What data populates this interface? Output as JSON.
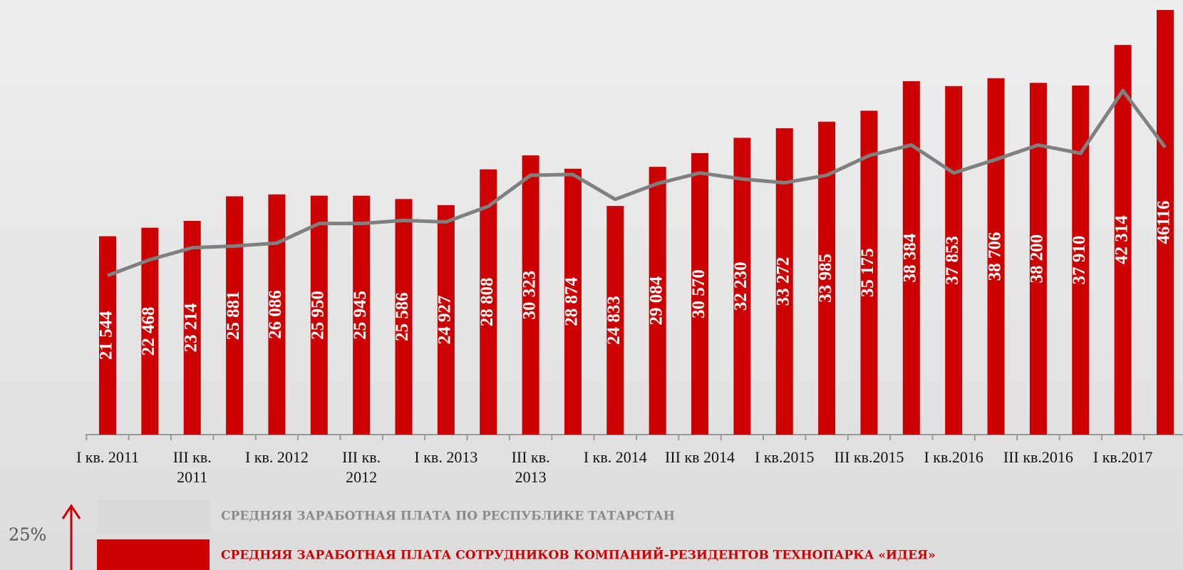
{
  "chart_data": {
    "type": "bar",
    "categories": [
      "I кв. 2011",
      null,
      "III кв.\n2011",
      null,
      "I кв. 2012",
      null,
      "III кв.\n2012",
      null,
      "I кв. 2013",
      null,
      "III кв.\n2013",
      null,
      "I кв. 2014",
      null,
      "III кв 2014",
      null,
      "I кв.2015",
      null,
      "III кв.2015",
      null,
      "I кв.2016",
      null,
      "III кв.2016",
      null,
      "I кв.2017",
      null
    ],
    "series": [
      {
        "name": "СРЕДНЯЯ ЗАРАБОТНАЯ ПЛАТА СОТРУДНИКОВ КОМПАНИЙ-РЕЗИДЕНТОВ ТЕХНОПАРКА «ИДЕЯ»",
        "type": "bar",
        "color": "#cc0000",
        "values": [
          21544,
          22468,
          23214,
          25881,
          26086,
          25950,
          25945,
          25586,
          24927,
          28808,
          30323,
          28874,
          24833,
          29084,
          30570,
          32230,
          33272,
          33985,
          35175,
          38384,
          37853,
          38706,
          38200,
          37910,
          42314,
          46116
        ],
        "value_labels": [
          "21 544",
          "22 468",
          "23 214",
          "25 881",
          "26 086",
          "25 950",
          "25 945",
          "25 586",
          "24 927",
          "28 808",
          "30 323",
          "28 874",
          "24 833",
          "29 084",
          "30 570",
          "32 230",
          "33 272",
          "33 985",
          "35 175",
          "38 384",
          "37 853",
          "38 706",
          "38 200",
          "37 910",
          "42 314",
          "46116"
        ]
      },
      {
        "name": "СРЕДНЯЯ ЗАРАБОТНАЯ ПЛАТА ПО РЕСПУБЛИКЕ ТАТАРСТАН",
        "type": "line",
        "color": "#808080",
        "values": [
          17280,
          19000,
          20300,
          20480,
          20800,
          22930,
          22930,
          23260,
          23100,
          24800,
          28170,
          28250,
          25550,
          27270,
          28420,
          27760,
          27350,
          28170,
          30300,
          31450,
          28420,
          29890,
          31450,
          30550,
          37350,
          31200
        ]
      }
    ],
    "ylim": [
      0,
      47200
    ],
    "annotation": "25%"
  }
}
